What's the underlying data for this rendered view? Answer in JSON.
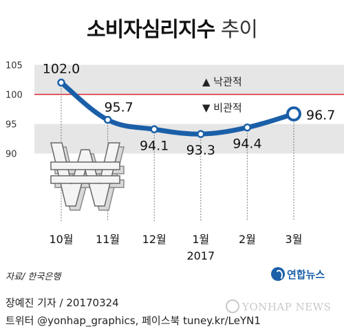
{
  "chart_data": {
    "type": "line",
    "title": "소비자심리지수",
    "subtitle": "추이",
    "categories": [
      "10월",
      "11월",
      "12월",
      "1월",
      "2월",
      "3월"
    ],
    "year_label": "2017",
    "year_label_category": "1월",
    "series": [
      {
        "values": [
          102.0,
          95.7,
          94.1,
          93.3,
          94.4,
          96.7
        ]
      }
    ],
    "data_labels": [
      "102.0",
      "95.7",
      "94.1",
      "93.3",
      "94.4",
      "96.7"
    ],
    "y_ticks": [
      "90",
      "95",
      "100",
      "105"
    ],
    "ylim": [
      86,
      109
    ],
    "bands": [
      [
        90,
        95
      ],
      [
        100,
        105
      ]
    ],
    "reference_line": 100,
    "annotation_up": "▲ 낙관적",
    "annotation_down": "▼ 비관적",
    "colors": {
      "line": "#1a5fa8",
      "reference": "#d9232a",
      "band": "#e6e6e6",
      "up_arrow": "#d9232a",
      "down_arrow": "#d9232a"
    },
    "decoration_icon": "won-sign-icon"
  },
  "source_text": "자료/ 한국은행",
  "logo_text": "연합뉴스",
  "credit_line1": "장예진 기자 / 20170324",
  "credit_line2": "트위터 @yonhap_graphics, 페이스북 tuney.kr/LeYN1",
  "watermark": "YONHAP NEWS"
}
